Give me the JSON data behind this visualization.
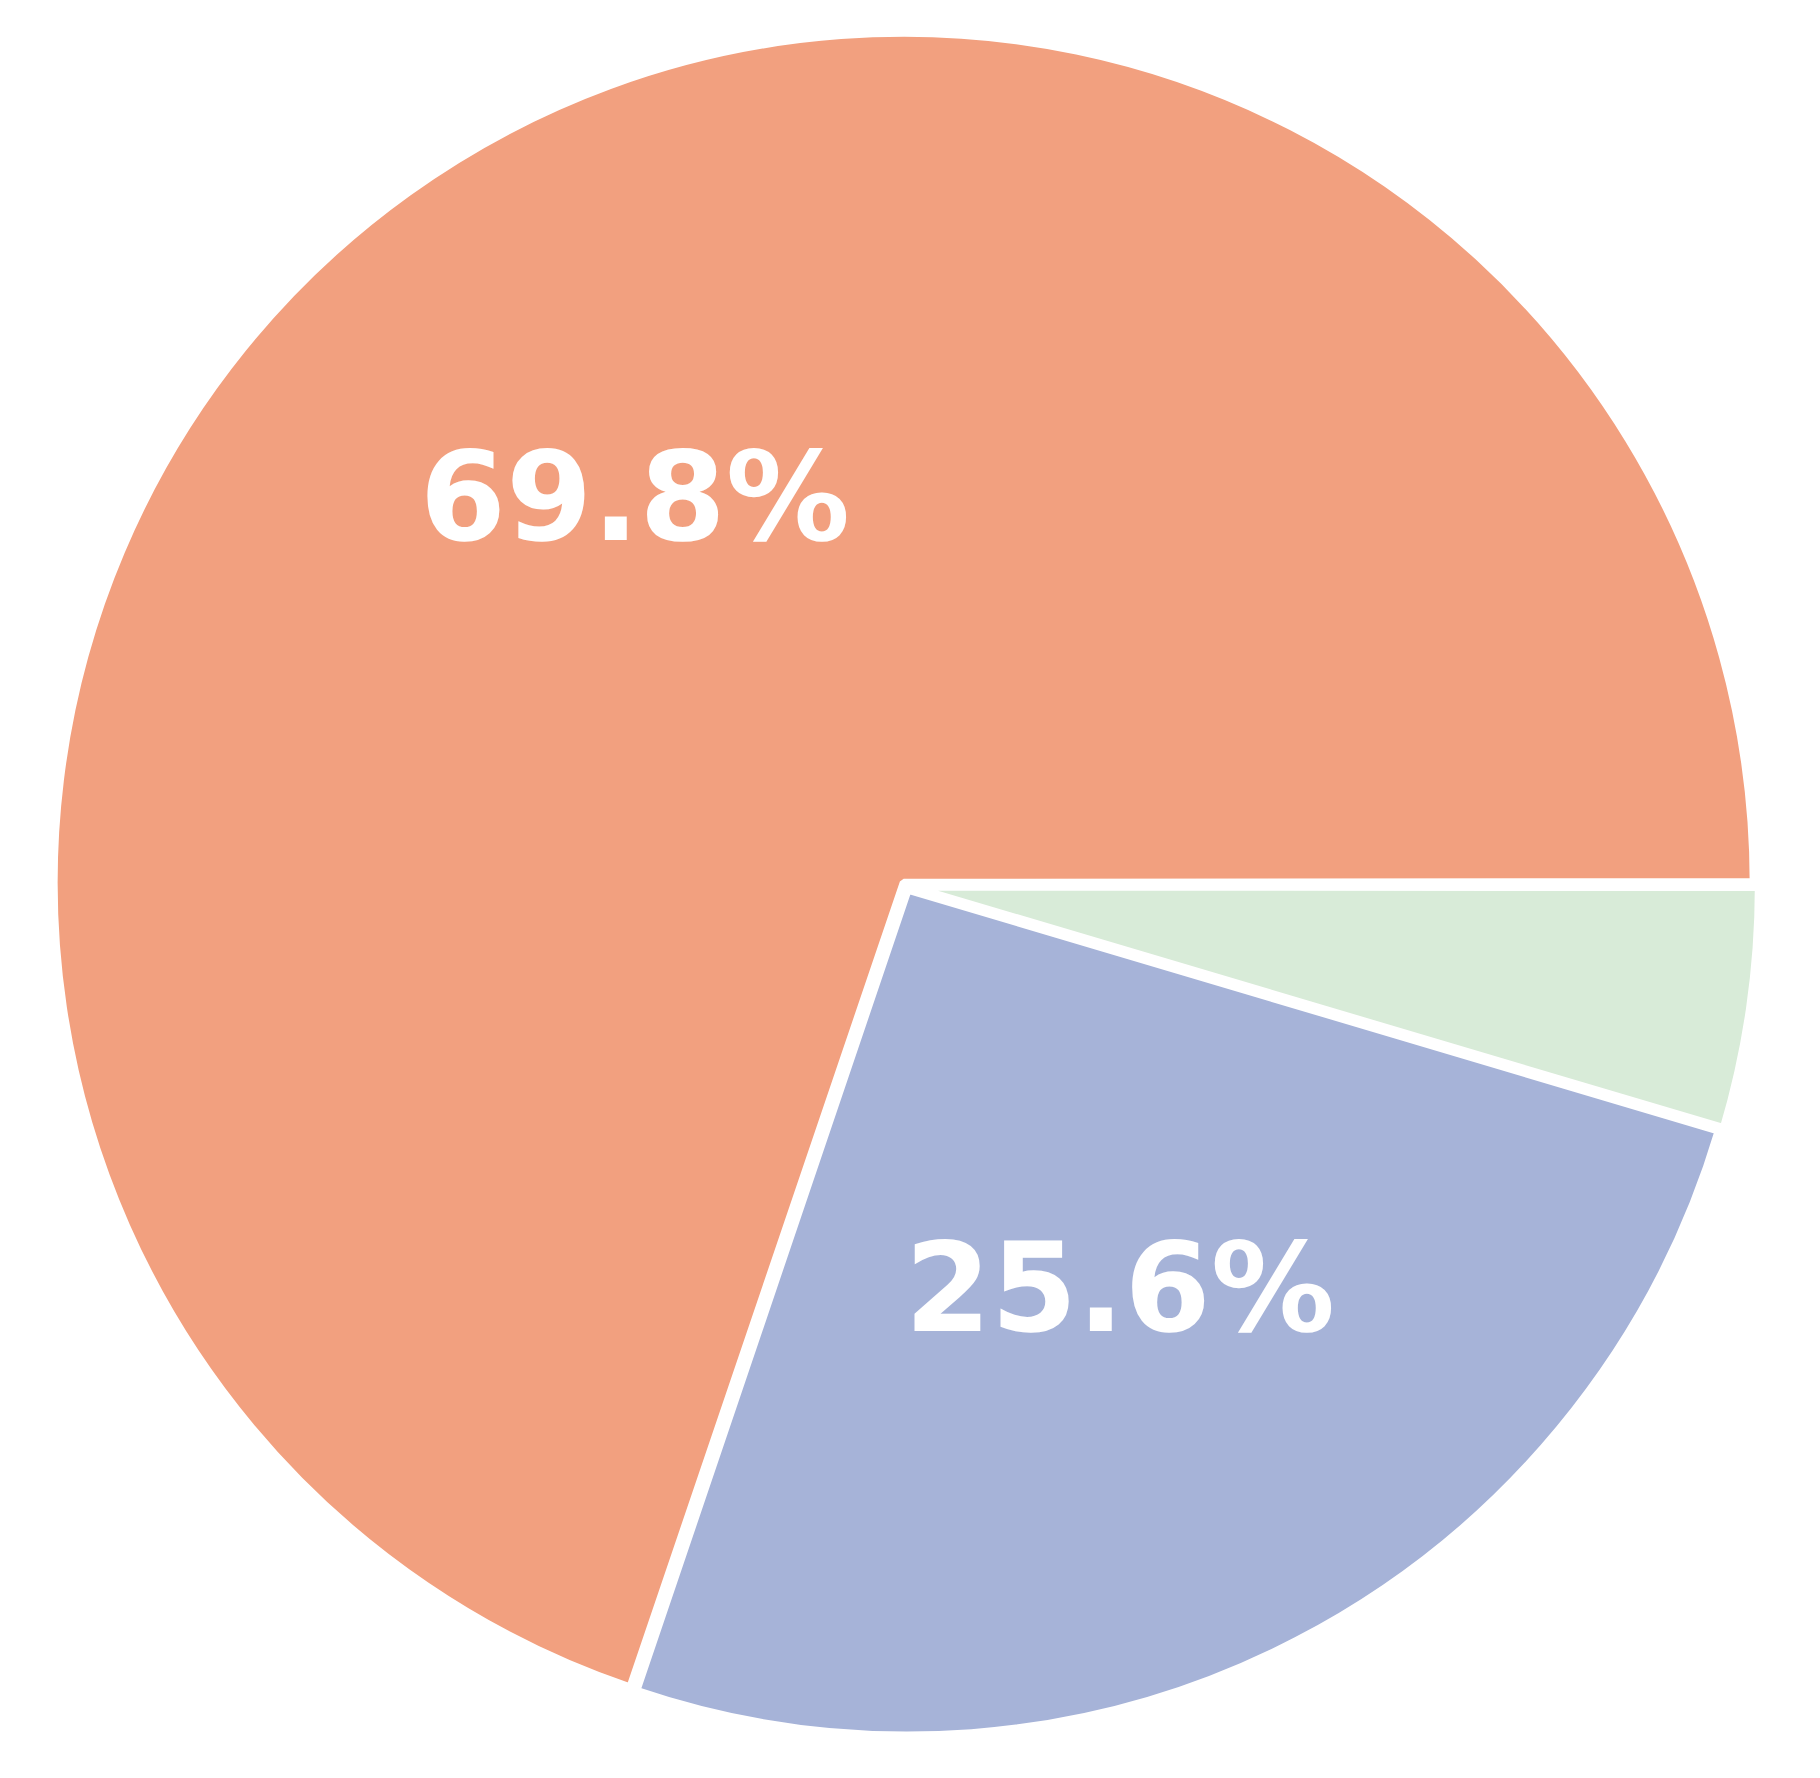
{
  "chart_data": {
    "type": "pie",
    "categories": [
      null,
      null,
      null
    ],
    "values": [
      4.6,
      25.6,
      69.8
    ],
    "colors": [
      "#d8ebd8",
      "#a6b3d8",
      "#f2a07f"
    ],
    "value_labels": [
      null,
      "25.6%",
      "69.8%"
    ]
  }
}
